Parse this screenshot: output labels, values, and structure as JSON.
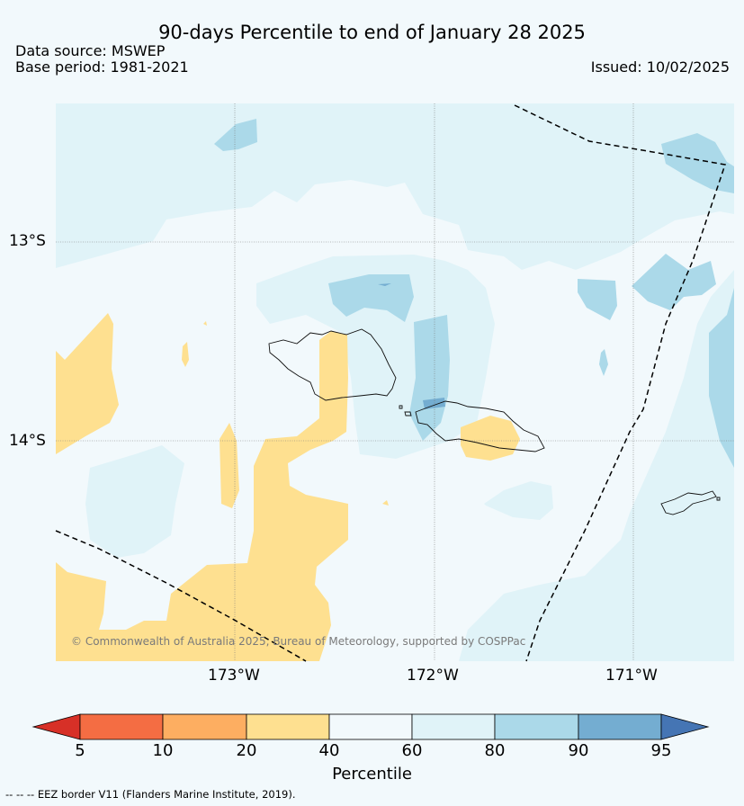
{
  "title": "90-days Percentile to end of January 28 2025",
  "data_source": "Data source: MSWEP",
  "base_period": "Base period: 1981-2021",
  "issued": "Issued: 10/02/2025",
  "copyright": "© Commonwealth of Australia 2025, Bureau of Meteorology, supported by COSPPac",
  "footnote": "--  --  -- EEZ border V11 (Flanders Marine Institute, 2019).",
  "map": {
    "lat_labels": [
      "13°S",
      "14°S"
    ],
    "lon_labels": [
      "173°W",
      "172°W",
      "171°W"
    ]
  },
  "colorbar": {
    "label": "Percentile",
    "ticks": [
      "5",
      "10",
      "20",
      "40",
      "60",
      "80",
      "90",
      "95"
    ],
    "colors": {
      "below_5": "#d73027",
      "5_10": "#f46d43",
      "10_20": "#fdae61",
      "20_40": "#fee090",
      "40_60": "#f2f9fc",
      "60_80": "#e0f3f8",
      "80_90": "#abd9e9",
      "90_95": "#74add1",
      "above_95": "#4575b4"
    }
  }
}
